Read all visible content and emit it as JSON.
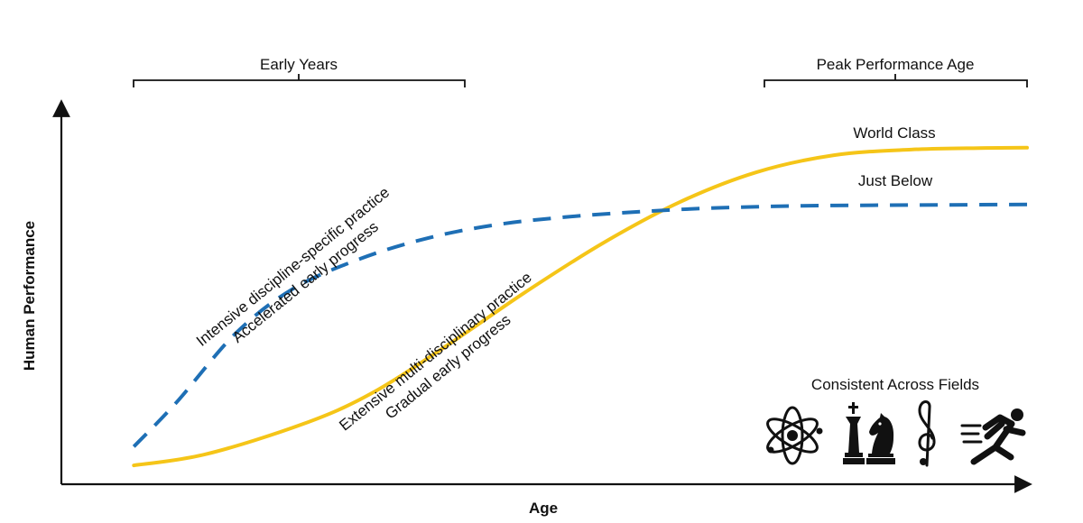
{
  "chart_data": {
    "type": "line",
    "xlabel": "Age",
    "ylabel": "Human Performance",
    "axis_ticks": "none",
    "grid": false,
    "x_range": [
      0,
      1
    ],
    "y_range": [
      0,
      1
    ],
    "series": [
      {
        "name": "World Class",
        "color": "#F5C518",
        "style": "solid",
        "x": [
          0.075,
          0.15,
          0.25,
          0.32,
          0.4,
          0.48,
          0.56,
          0.64,
          0.72,
          0.8,
          0.88,
          0.95,
          1.0
        ],
        "y": [
          0.05,
          0.08,
          0.16,
          0.24,
          0.37,
          0.51,
          0.64,
          0.75,
          0.83,
          0.875,
          0.89,
          0.894,
          0.895
        ]
      },
      {
        "name": "Just Below",
        "color": "#1E6FB5",
        "style": "dashed",
        "x": [
          0.075,
          0.12,
          0.18,
          0.24,
          0.31,
          0.38,
          0.45,
          0.52,
          0.6,
          0.68,
          0.76,
          0.84,
          0.92,
          1.0
        ],
        "y": [
          0.1,
          0.22,
          0.4,
          0.52,
          0.6,
          0.655,
          0.69,
          0.71,
          0.725,
          0.735,
          0.74,
          0.742,
          0.743,
          0.744
        ]
      }
    ],
    "brackets": [
      {
        "label": "Early Years",
        "x0": 0.075,
        "x1": 0.42
      },
      {
        "label": "Peak Performance Age",
        "x0": 0.73,
        "x1": 1.0
      }
    ],
    "annotations": [
      {
        "lines": [
          "Intensive discipline-specific practice",
          "Accelerated early progress"
        ],
        "series": "Just Below"
      },
      {
        "lines": [
          "Extensive multi-disciplinary practice",
          "Gradual early progress"
        ],
        "series": "World Class"
      }
    ],
    "fields": {
      "title": "Consistent Across Fields",
      "icons": [
        "atom-icon",
        "chess-pieces-icon",
        "treble-clef-icon",
        "runner-icon"
      ]
    }
  }
}
